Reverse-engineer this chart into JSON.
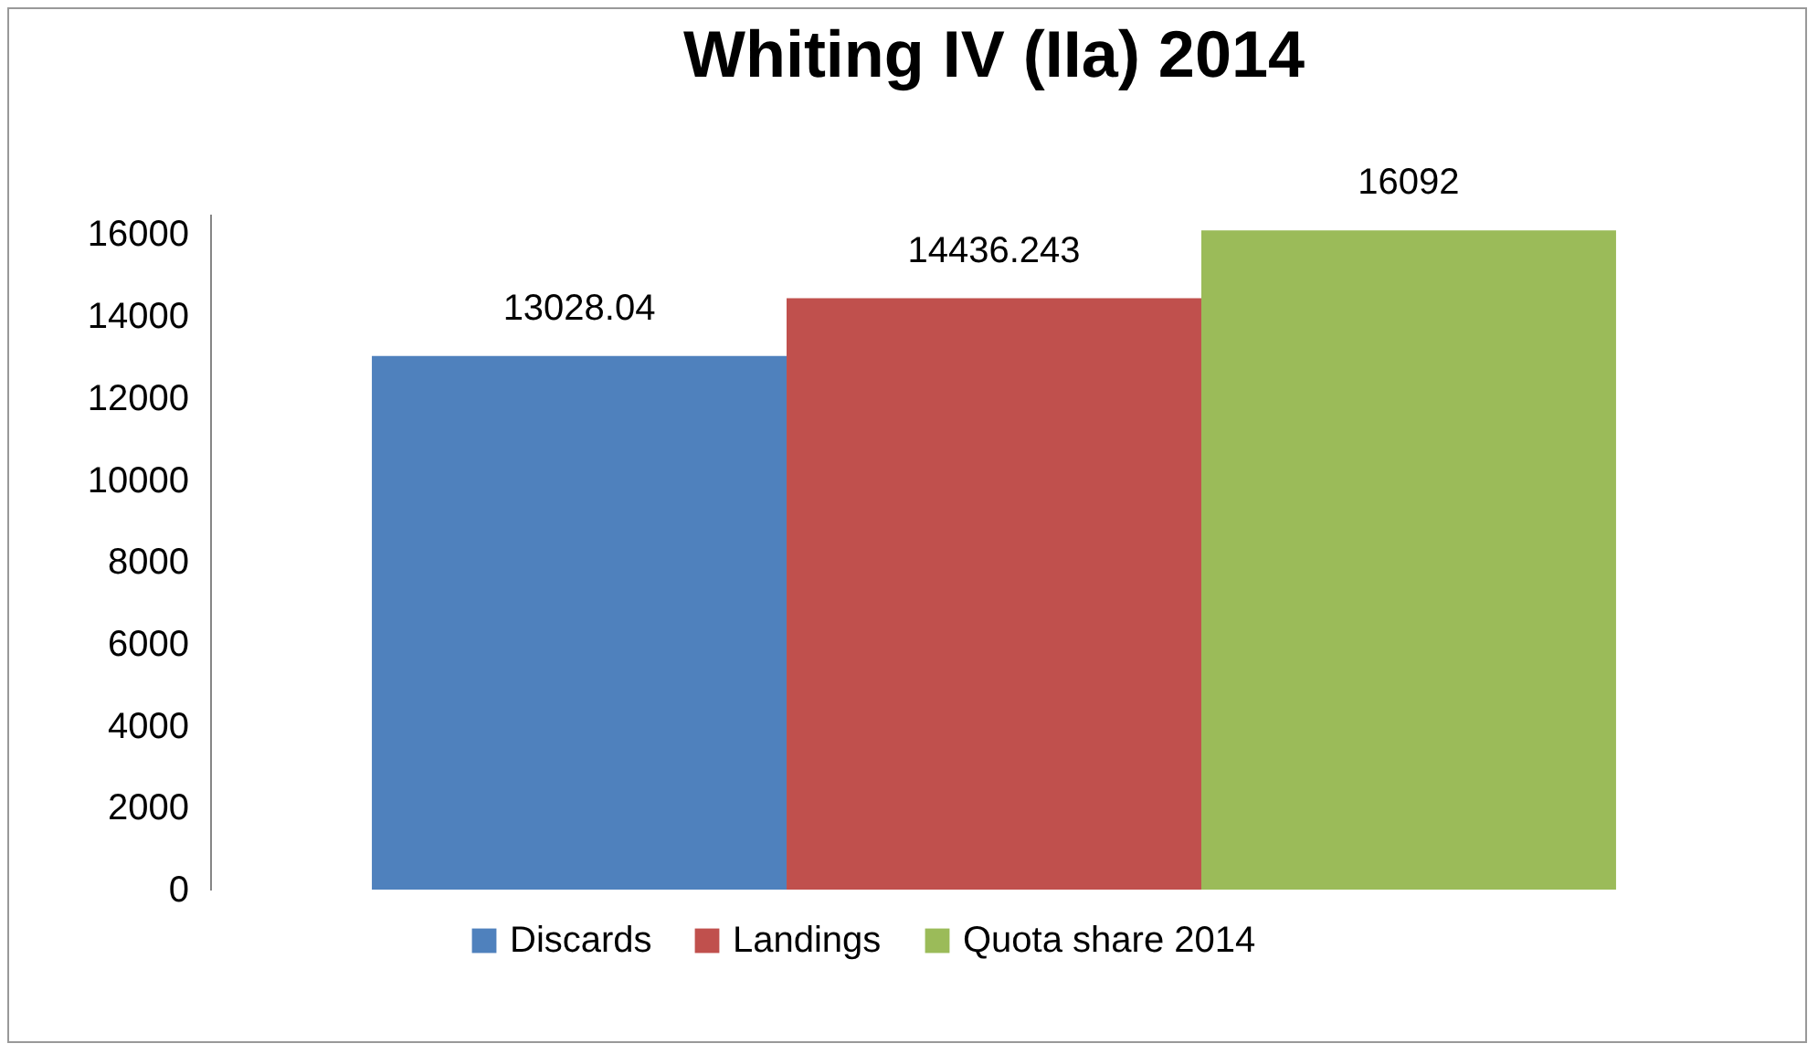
{
  "chart_data": {
    "type": "bar",
    "title": "Whiting IV (IIa) 2014",
    "categories": [
      null
    ],
    "series": [
      {
        "name": "Discards",
        "color": "#4f81bd",
        "values": [
          13028.04
        ]
      },
      {
        "name": "Landings",
        "color": "#c0504d",
        "values": [
          14436.243
        ]
      },
      {
        "name": "Quota share 2014",
        "color": "#9bbb59",
        "values": [
          16092
        ]
      }
    ],
    "ylim": [
      0,
      16500
    ],
    "yticks": [
      0,
      2000,
      4000,
      6000,
      8000,
      10000,
      12000,
      14000,
      16000
    ],
    "data_labels": true,
    "legend": "bottom",
    "grid": false
  }
}
